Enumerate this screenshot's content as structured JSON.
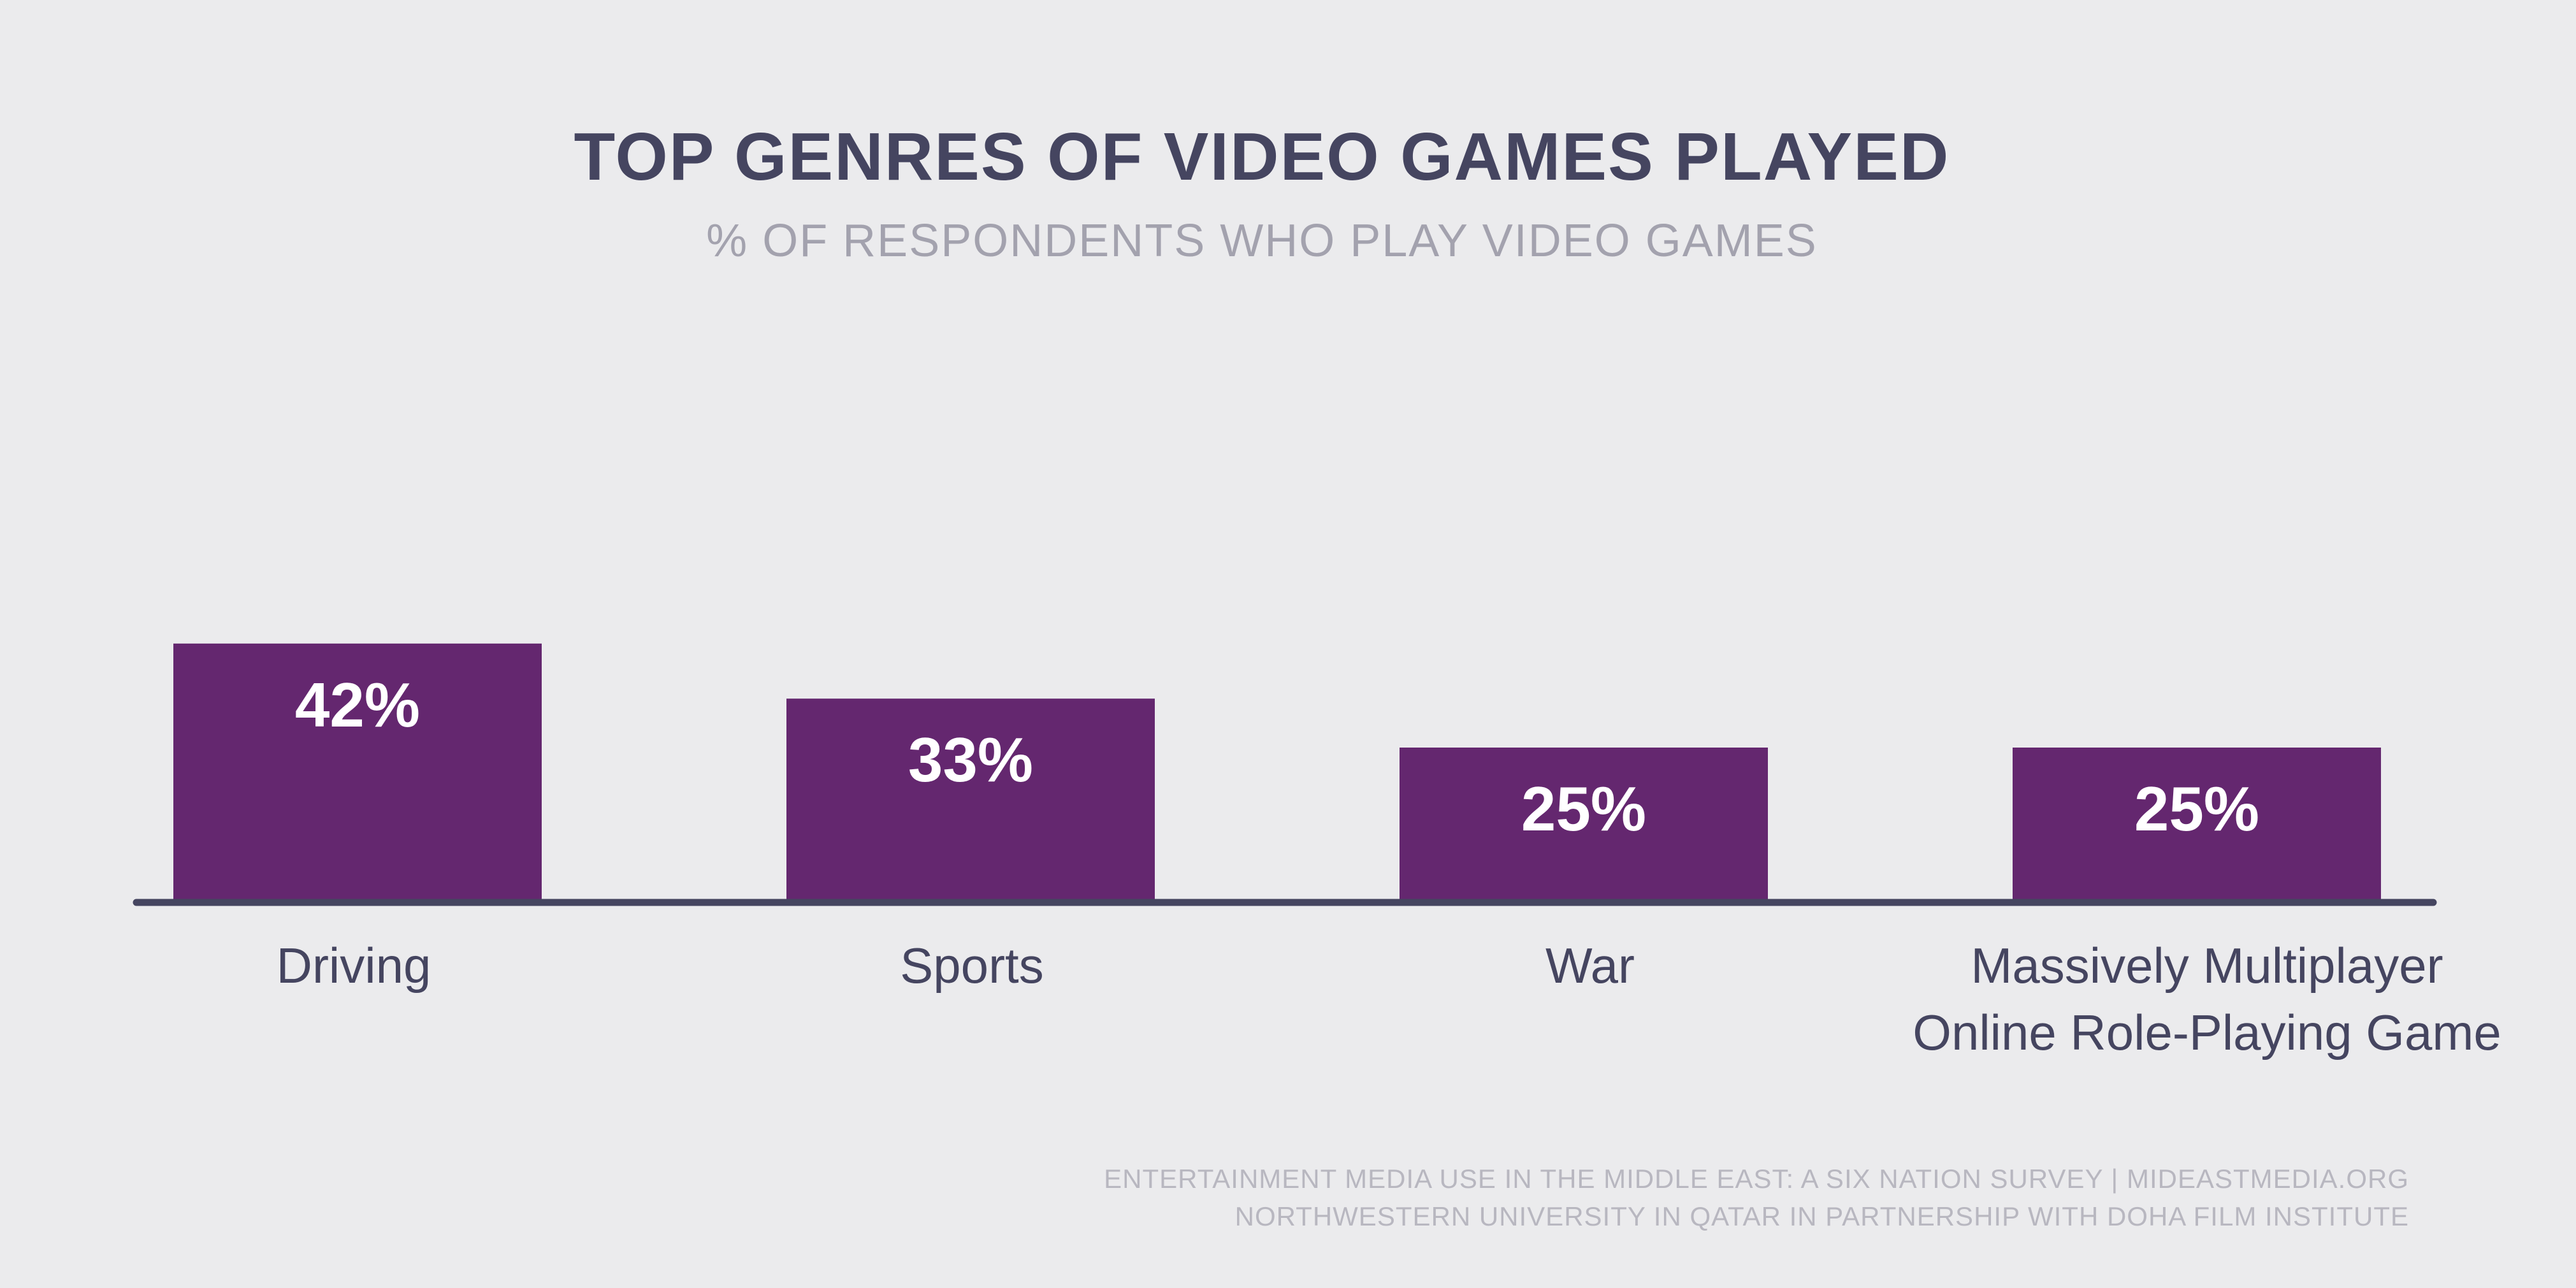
{
  "chart_data": {
    "type": "bar",
    "title": "TOP GENRES OF VIDEO GAMES PLAYED",
    "subtitle": "% OF RESPONDENTS WHO PLAY VIDEO GAMES",
    "categories": [
      "Driving",
      "Sports",
      "War",
      "Massively Multiplayer Online Role-Playing Game"
    ],
    "category_lines": [
      [
        "Driving"
      ],
      [
        "Sports"
      ],
      [
        "War"
      ],
      [
        "Massively Multiplayer",
        "Online Role-Playing Game"
      ]
    ],
    "values": [
      42,
      33,
      25,
      25
    ],
    "value_labels": [
      "42%",
      "33%",
      "25%",
      "25%"
    ],
    "unit": "%",
    "ylim": [
      0,
      100
    ],
    "grid": false,
    "legend": "none",
    "bar_color": "#64276f",
    "axis_color": "#454560"
  },
  "source": {
    "line1": "ENTERTAINMENT MEDIA USE IN THE MIDDLE EAST: A SIX NATION SURVEY | MIDEASTMEDIA.ORG",
    "line2": "NORTHWESTERN UNIVERSITY IN QATAR IN PARTNERSHIP WITH DOHA FILM INSTITUTE"
  }
}
